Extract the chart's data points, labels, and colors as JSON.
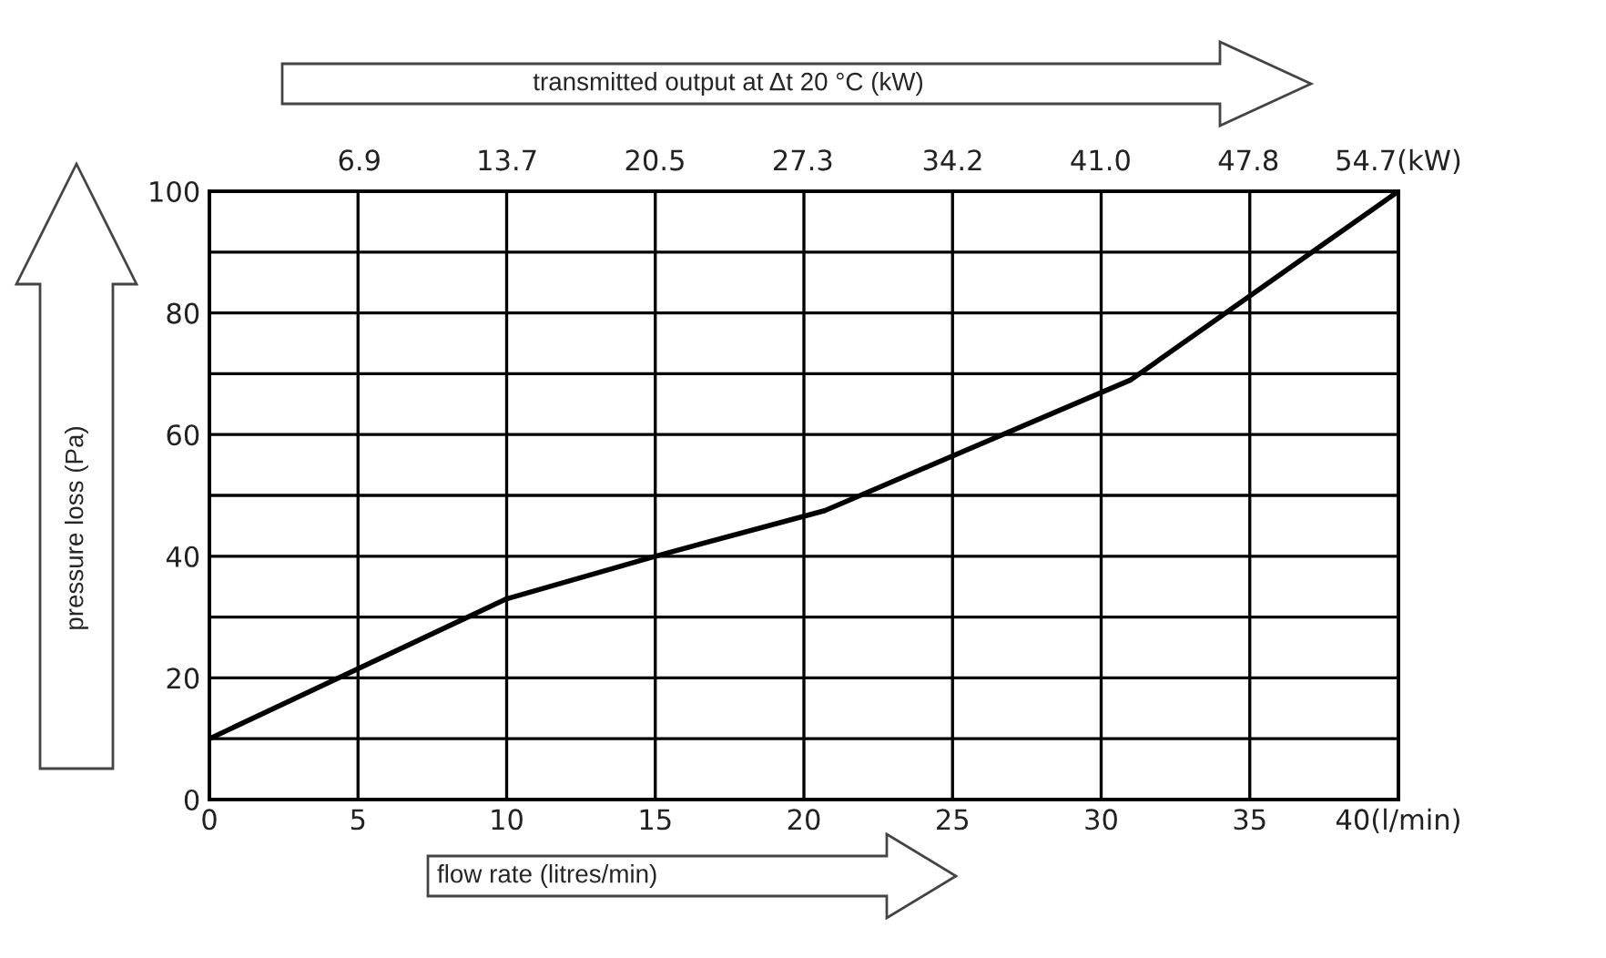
{
  "chart_data": {
    "type": "line",
    "xlabel": "flow rate (litres/min)",
    "x2label": "transmitted output at Δt 20 °C (kW)",
    "ylabel": "pressure loss (Pa)",
    "x": [
      0,
      10,
      15,
      20.7,
      31,
      40
    ],
    "series": [
      {
        "color": "#000000",
        "values": [
          10,
          33,
          40,
          47.5,
          69,
          100
        ]
      }
    ],
    "xlim": [
      0,
      40
    ],
    "ylim": [
      0,
      100
    ],
    "xticks": [
      0,
      5,
      10,
      15,
      20,
      25,
      30,
      35,
      {
        "value": 40,
        "label": "40(l/min)"
      }
    ],
    "x2lim": [
      0,
      54.7
    ],
    "x2ticks": [
      6.9,
      13.7,
      20.5,
      27.3,
      34.2,
      {
        "value": 41,
        "label": "41.0"
      },
      47.8,
      {
        "value": 54.7,
        "label": "54.7(kW)"
      }
    ],
    "yticks": [
      0,
      {
        "value": 10,
        "label": null
      },
      20,
      {
        "value": 30,
        "label": null
      },
      40,
      {
        "value": 50,
        "label": null
      },
      60,
      {
        "value": 70,
        "label": null
      },
      80,
      {
        "value": 90,
        "label": null
      },
      100
    ],
    "grid": true,
    "marker": "none",
    "line_style": "solid"
  }
}
